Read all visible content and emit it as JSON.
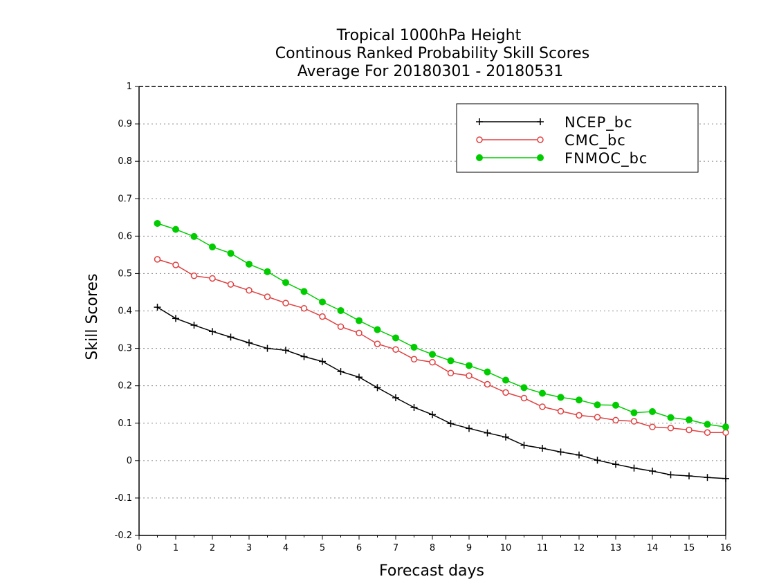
{
  "chart_data": {
    "type": "line",
    "title": [
      "Tropical 1000hPa Height",
      "Continous Ranked Probability Skill Scores",
      "Average For 20180301 - 20180531"
    ],
    "xlabel": "Forecast days",
    "ylabel": "Skill Scores",
    "xlim": [
      0,
      16
    ],
    "ylim": [
      -0.2,
      1
    ],
    "xticks": [
      "0",
      "1",
      "2",
      "3",
      "4",
      "5",
      "6",
      "7",
      "8",
      "9",
      "10",
      "11",
      "12",
      "13",
      "14",
      "15",
      "16"
    ],
    "yticks": [
      "-0.2",
      "-0.1",
      "0",
      "0.1",
      "0.2",
      "0.3",
      "0.4",
      "0.5",
      "0.6",
      "0.7",
      "0.8",
      "0.9",
      "1"
    ],
    "grid": "horizontal-dotted",
    "legend_position": "top-right",
    "x": [
      0.5,
      1,
      1.5,
      2,
      2.5,
      3,
      3.5,
      4,
      4.5,
      5,
      5.5,
      6,
      6.5,
      7,
      7.5,
      8,
      8.5,
      9,
      9.5,
      10,
      10.5,
      11,
      11.5,
      12,
      12.5,
      13,
      13.5,
      14,
      14.5,
      15,
      15.5,
      16
    ],
    "series": [
      {
        "name": "NCEP_bc",
        "color": "#000000",
        "marker": "plus",
        "values": [
          0.41,
          0.38,
          0.362,
          0.345,
          0.33,
          0.315,
          0.3,
          0.295,
          0.278,
          0.265,
          0.238,
          0.223,
          0.195,
          0.168,
          0.142,
          0.123,
          0.099,
          0.086,
          0.074,
          0.063,
          0.041,
          0.033,
          0.023,
          0.015,
          0.001,
          -0.01,
          -0.02,
          -0.028,
          -0.038,
          -0.041,
          -0.045,
          -0.048
        ]
      },
      {
        "name": "CMC_bc",
        "color": "#e04040",
        "marker": "open-circle",
        "values": [
          0.538,
          0.523,
          0.494,
          0.487,
          0.471,
          0.455,
          0.438,
          0.421,
          0.407,
          0.385,
          0.358,
          0.341,
          0.312,
          0.297,
          0.271,
          0.263,
          0.234,
          0.227,
          0.204,
          0.182,
          0.167,
          0.144,
          0.132,
          0.121,
          0.116,
          0.108,
          0.105,
          0.09,
          0.087,
          0.082,
          0.075,
          0.075
        ]
      },
      {
        "name": "FNMOC_bc",
        "color": "#00cc00",
        "marker": "filled-circle",
        "values": [
          0.634,
          0.618,
          0.599,
          0.571,
          0.554,
          0.525,
          0.505,
          0.476,
          0.452,
          0.424,
          0.401,
          0.374,
          0.35,
          0.328,
          0.303,
          0.284,
          0.267,
          0.254,
          0.237,
          0.215,
          0.195,
          0.18,
          0.169,
          0.162,
          0.149,
          0.148,
          0.128,
          0.131,
          0.115,
          0.109,
          0.097,
          0.09
        ]
      }
    ]
  }
}
